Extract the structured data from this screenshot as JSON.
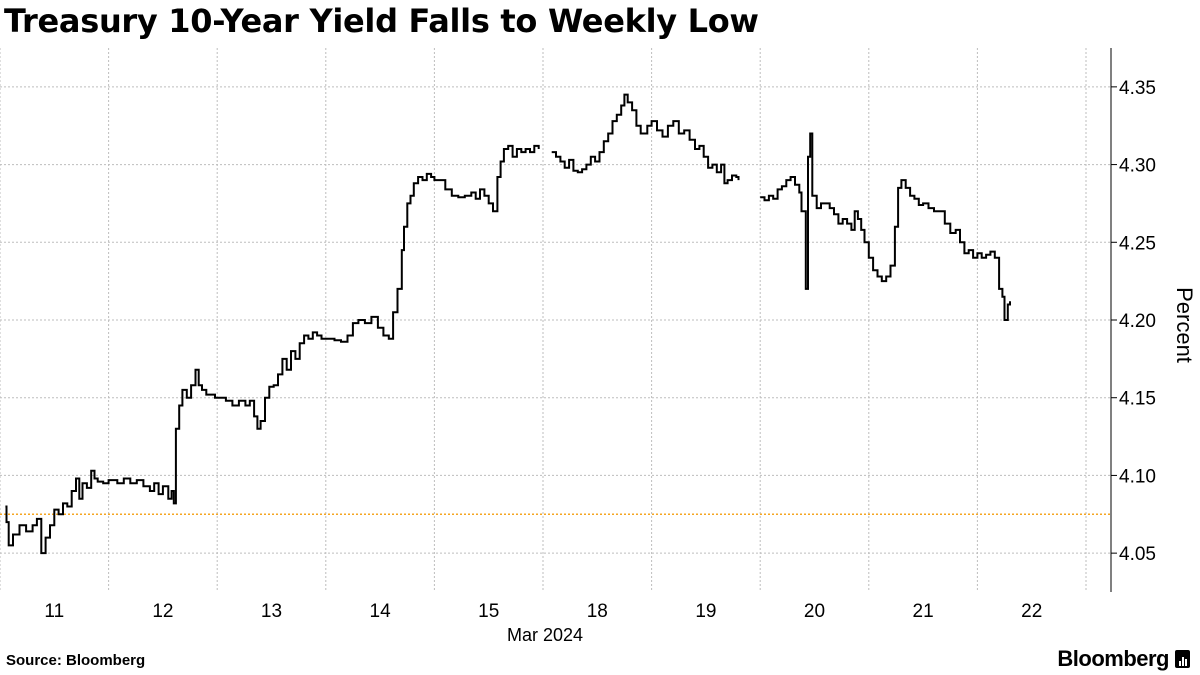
{
  "chart_data": {
    "type": "line",
    "title": "Treasury 10-Year Yield Falls to Weekly Low",
    "ylabel": "Percent",
    "xlabel": "Mar 2024",
    "ylim": [
      4.025,
      4.375
    ],
    "yticks": [
      "4.05",
      "4.10",
      "4.15",
      "4.20",
      "4.25",
      "4.30",
      "4.35"
    ],
    "categories": [
      "11",
      "12",
      "13",
      "14",
      "15",
      "18",
      "19",
      "20",
      "21",
      "22"
    ],
    "reference_line": {
      "value": 4.075,
      "color": "#f5a623"
    },
    "grid": true,
    "series": [
      {
        "values": [
          [
            0.05,
            4.08
          ],
          [
            0.06,
            4.07
          ],
          [
            0.08,
            4.055
          ],
          [
            0.12,
            4.062
          ],
          [
            0.18,
            4.068
          ],
          [
            0.24,
            4.064
          ],
          [
            0.3,
            4.068
          ],
          [
            0.34,
            4.072
          ],
          [
            0.38,
            4.05
          ],
          [
            0.42,
            4.06
          ],
          [
            0.46,
            4.068
          ],
          [
            0.5,
            4.078
          ],
          [
            0.54,
            4.075
          ],
          [
            0.58,
            4.082
          ],
          [
            0.62,
            4.08
          ],
          [
            0.66,
            4.09
          ],
          [
            0.7,
            4.098
          ],
          [
            0.73,
            4.085
          ],
          [
            0.76,
            4.095
          ],
          [
            0.8,
            4.092
          ],
          [
            0.84,
            4.103
          ],
          [
            0.87,
            4.098
          ],
          [
            0.9,
            4.096
          ],
          [
            0.95,
            4.095
          ],
          [
            1.0,
            4.097
          ],
          [
            1.08,
            4.095
          ],
          [
            1.14,
            4.098
          ],
          [
            1.2,
            4.095
          ],
          [
            1.26,
            4.097
          ],
          [
            1.32,
            4.093
          ],
          [
            1.38,
            4.09
          ],
          [
            1.42,
            4.095
          ],
          [
            1.46,
            4.088
          ],
          [
            1.5,
            4.093
          ],
          [
            1.55,
            4.085
          ],
          [
            1.58,
            4.09
          ],
          [
            1.6,
            4.082
          ],
          [
            1.62,
            4.13
          ],
          [
            1.65,
            4.145
          ],
          [
            1.68,
            4.155
          ],
          [
            1.72,
            4.15
          ],
          [
            1.76,
            4.158
          ],
          [
            1.8,
            4.168
          ],
          [
            1.83,
            4.158
          ],
          [
            1.86,
            4.155
          ],
          [
            1.9,
            4.152
          ],
          [
            1.94,
            4.152
          ],
          [
            1.98,
            4.15
          ],
          [
            2.08,
            4.148
          ],
          [
            2.14,
            4.145
          ],
          [
            2.2,
            4.148
          ],
          [
            2.26,
            4.145
          ],
          [
            2.3,
            4.148
          ],
          [
            2.34,
            4.138
          ],
          [
            2.37,
            4.13
          ],
          [
            2.4,
            4.135
          ],
          [
            2.44,
            4.15
          ],
          [
            2.48,
            4.157
          ],
          [
            2.52,
            4.158
          ],
          [
            2.56,
            4.165
          ],
          [
            2.6,
            4.175
          ],
          [
            2.64,
            4.168
          ],
          [
            2.68,
            4.18
          ],
          [
            2.72,
            4.175
          ],
          [
            2.76,
            4.185
          ],
          [
            2.8,
            4.19
          ],
          [
            2.84,
            4.188
          ],
          [
            2.88,
            4.192
          ],
          [
            2.92,
            4.19
          ],
          [
            2.96,
            4.188
          ],
          [
            3.0,
            4.188
          ],
          [
            3.08,
            4.187
          ],
          [
            3.14,
            4.186
          ],
          [
            3.2,
            4.19
          ],
          [
            3.25,
            4.198
          ],
          [
            3.3,
            4.2
          ],
          [
            3.36,
            4.198
          ],
          [
            3.42,
            4.202
          ],
          [
            3.48,
            4.195
          ],
          [
            3.53,
            4.19
          ],
          [
            3.58,
            4.188
          ],
          [
            3.62,
            4.205
          ],
          [
            3.66,
            4.22
          ],
          [
            3.7,
            4.245
          ],
          [
            3.72,
            4.26
          ],
          [
            3.75,
            4.275
          ],
          [
            3.78,
            4.28
          ],
          [
            3.81,
            4.288
          ],
          [
            3.85,
            4.292
          ],
          [
            3.89,
            4.29
          ],
          [
            3.93,
            4.294
          ],
          [
            3.97,
            4.292
          ],
          [
            4.0,
            4.29
          ],
          [
            4.1,
            4.284
          ],
          [
            4.16,
            4.28
          ],
          [
            4.22,
            4.279
          ],
          [
            4.28,
            4.28
          ],
          [
            4.34,
            4.282
          ],
          [
            4.38,
            4.278
          ],
          [
            4.42,
            4.284
          ],
          [
            4.46,
            4.28
          ],
          [
            4.5,
            4.275
          ],
          [
            4.54,
            4.27
          ],
          [
            4.58,
            4.292
          ],
          [
            4.61,
            4.302
          ],
          [
            4.64,
            4.31
          ],
          [
            4.68,
            4.312
          ],
          [
            4.72,
            4.305
          ],
          [
            4.76,
            4.31
          ],
          [
            4.8,
            4.308
          ],
          [
            4.84,
            4.31
          ],
          [
            4.88,
            4.308
          ],
          [
            4.92,
            4.312
          ],
          [
            4.96,
            4.31
          ],
          [
            5.08,
            4.308
          ],
          [
            5.12,
            4.305
          ],
          [
            5.16,
            4.302
          ],
          [
            5.2,
            4.298
          ],
          [
            5.24,
            4.303
          ],
          [
            5.28,
            4.296
          ],
          [
            5.32,
            4.295
          ],
          [
            5.36,
            4.297
          ],
          [
            5.4,
            4.3
          ],
          [
            5.44,
            4.305
          ],
          [
            5.48,
            4.302
          ],
          [
            5.52,
            4.308
          ],
          [
            5.56,
            4.315
          ],
          [
            5.6,
            4.32
          ],
          [
            5.64,
            4.328
          ],
          [
            5.68,
            4.332
          ],
          [
            5.72,
            4.338
          ],
          [
            5.75,
            4.345
          ],
          [
            5.78,
            4.34
          ],
          [
            5.82,
            4.335
          ],
          [
            5.86,
            4.325
          ],
          [
            5.9,
            4.32
          ],
          [
            5.96,
            4.325
          ],
          [
            6.0,
            4.328
          ],
          [
            6.05,
            4.322
          ],
          [
            6.1,
            4.318
          ],
          [
            6.15,
            4.325
          ],
          [
            6.2,
            4.328
          ],
          [
            6.25,
            4.32
          ],
          [
            6.3,
            4.322
          ],
          [
            6.35,
            4.316
          ],
          [
            6.4,
            4.31
          ],
          [
            6.44,
            4.312
          ],
          [
            6.48,
            4.305
          ],
          [
            6.52,
            4.298
          ],
          [
            6.56,
            4.3
          ],
          [
            6.6,
            4.295
          ],
          [
            6.64,
            4.3
          ],
          [
            6.67,
            4.288
          ],
          [
            6.7,
            4.29
          ],
          [
            6.74,
            4.293
          ],
          [
            6.78,
            4.292
          ],
          [
            6.8,
            4.29
          ],
          [
            7.0,
            4.279
          ],
          [
            7.04,
            4.277
          ],
          [
            7.08,
            4.28
          ],
          [
            7.12,
            4.278
          ],
          [
            7.16,
            4.284
          ],
          [
            7.2,
            4.286
          ],
          [
            7.24,
            4.29
          ],
          [
            7.28,
            4.292
          ],
          [
            7.32,
            4.287
          ],
          [
            7.36,
            4.282
          ],
          [
            7.38,
            4.27
          ],
          [
            7.42,
            4.22
          ],
          [
            7.44,
            4.305
          ],
          [
            7.46,
            4.32
          ],
          [
            7.48,
            4.28
          ],
          [
            7.52,
            4.272
          ],
          [
            7.56,
            4.275
          ],
          [
            7.6,
            4.275
          ],
          [
            7.64,
            4.272
          ],
          [
            7.68,
            4.268
          ],
          [
            7.72,
            4.262
          ],
          [
            7.76,
            4.265
          ],
          [
            7.8,
            4.262
          ],
          [
            7.84,
            4.258
          ],
          [
            7.87,
            4.27
          ],
          [
            7.9,
            4.265
          ],
          [
            7.93,
            4.258
          ],
          [
            7.96,
            4.25
          ],
          [
            8.0,
            4.24
          ],
          [
            8.04,
            4.232
          ],
          [
            8.08,
            4.228
          ],
          [
            8.12,
            4.225
          ],
          [
            8.16,
            4.228
          ],
          [
            8.2,
            4.235
          ],
          [
            8.24,
            4.26
          ],
          [
            8.27,
            4.285
          ],
          [
            8.3,
            4.29
          ],
          [
            8.34,
            4.285
          ],
          [
            8.38,
            4.28
          ],
          [
            8.42,
            4.278
          ],
          [
            8.46,
            4.274
          ],
          [
            8.5,
            4.275
          ],
          [
            8.55,
            4.272
          ],
          [
            8.6,
            4.27
          ],
          [
            8.7,
            4.262
          ],
          [
            8.75,
            4.256
          ],
          [
            8.8,
            4.258
          ],
          [
            8.84,
            4.25
          ],
          [
            8.88,
            4.243
          ],
          [
            8.92,
            4.245
          ],
          [
            8.96,
            4.24
          ],
          [
            9.0,
            4.243
          ],
          [
            9.04,
            4.24
          ],
          [
            9.08,
            4.242
          ],
          [
            9.12,
            4.244
          ],
          [
            9.16,
            4.24
          ],
          [
            9.2,
            4.22
          ],
          [
            9.23,
            4.215
          ],
          [
            9.25,
            4.2
          ],
          [
            9.28,
            4.21
          ],
          [
            9.3,
            4.212
          ]
        ]
      }
    ]
  },
  "footer": {
    "source": "Source: Bloomberg",
    "brand": "Bloomberg"
  }
}
